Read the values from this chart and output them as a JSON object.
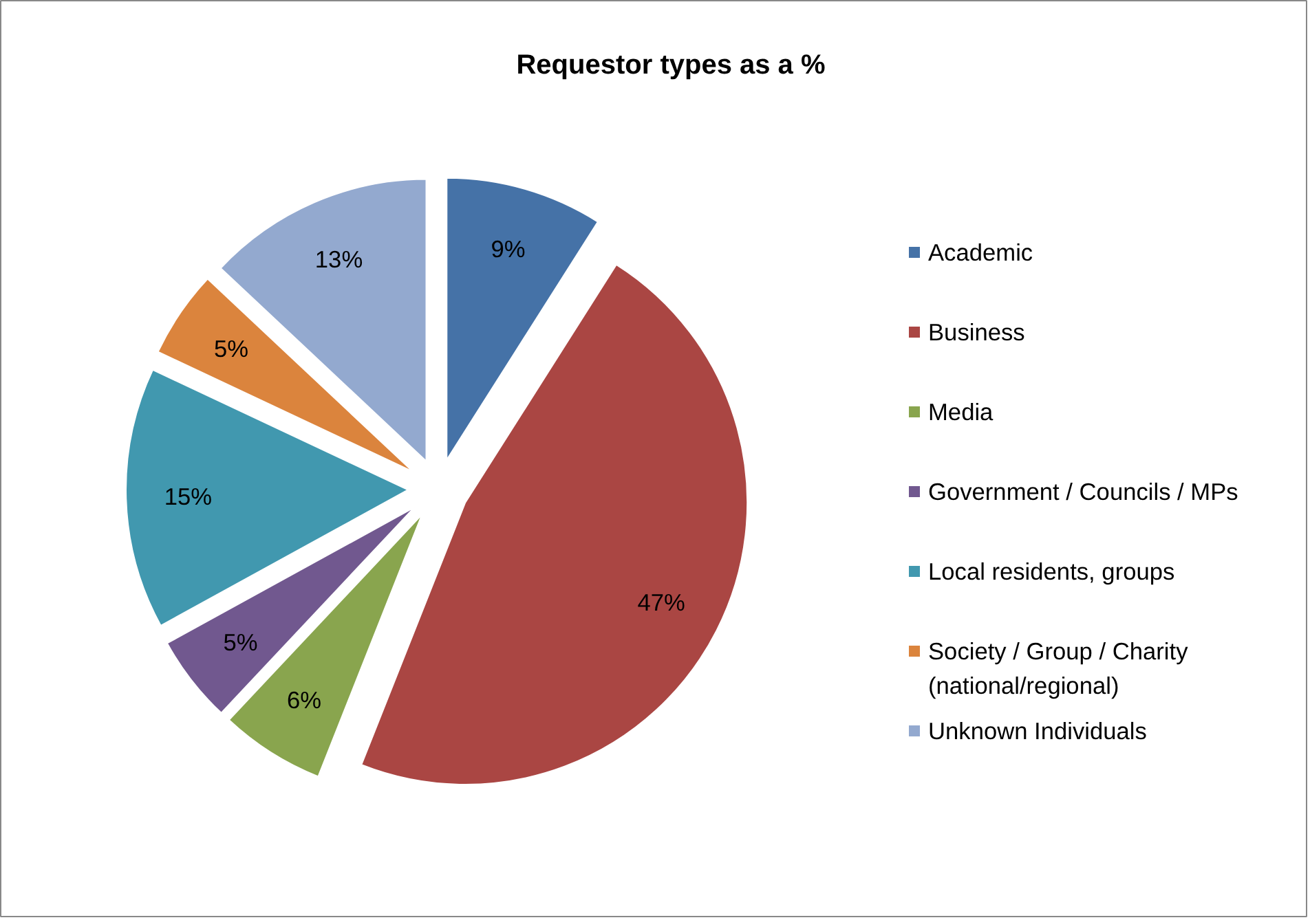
{
  "chart_data": {
    "type": "pie",
    "title": "Requestor types as a %",
    "categories": [
      "Academic",
      "Business",
      "Media",
      "Government / Councils / MPs",
      "Local residents, groups",
      "Society / Group / Charity (national/regional)",
      "Unknown Individuals"
    ],
    "values": [
      9,
      47,
      6,
      5,
      15,
      5,
      13
    ],
    "value_labels": [
      "9%",
      "47%",
      "6%",
      "5%",
      "15%",
      "5%",
      "13%"
    ],
    "colors": [
      "#4572a7",
      "#aa4643",
      "#89a54e",
      "#71588f",
      "#4198af",
      "#db843d",
      "#93a9cf"
    ],
    "legend": "right"
  }
}
